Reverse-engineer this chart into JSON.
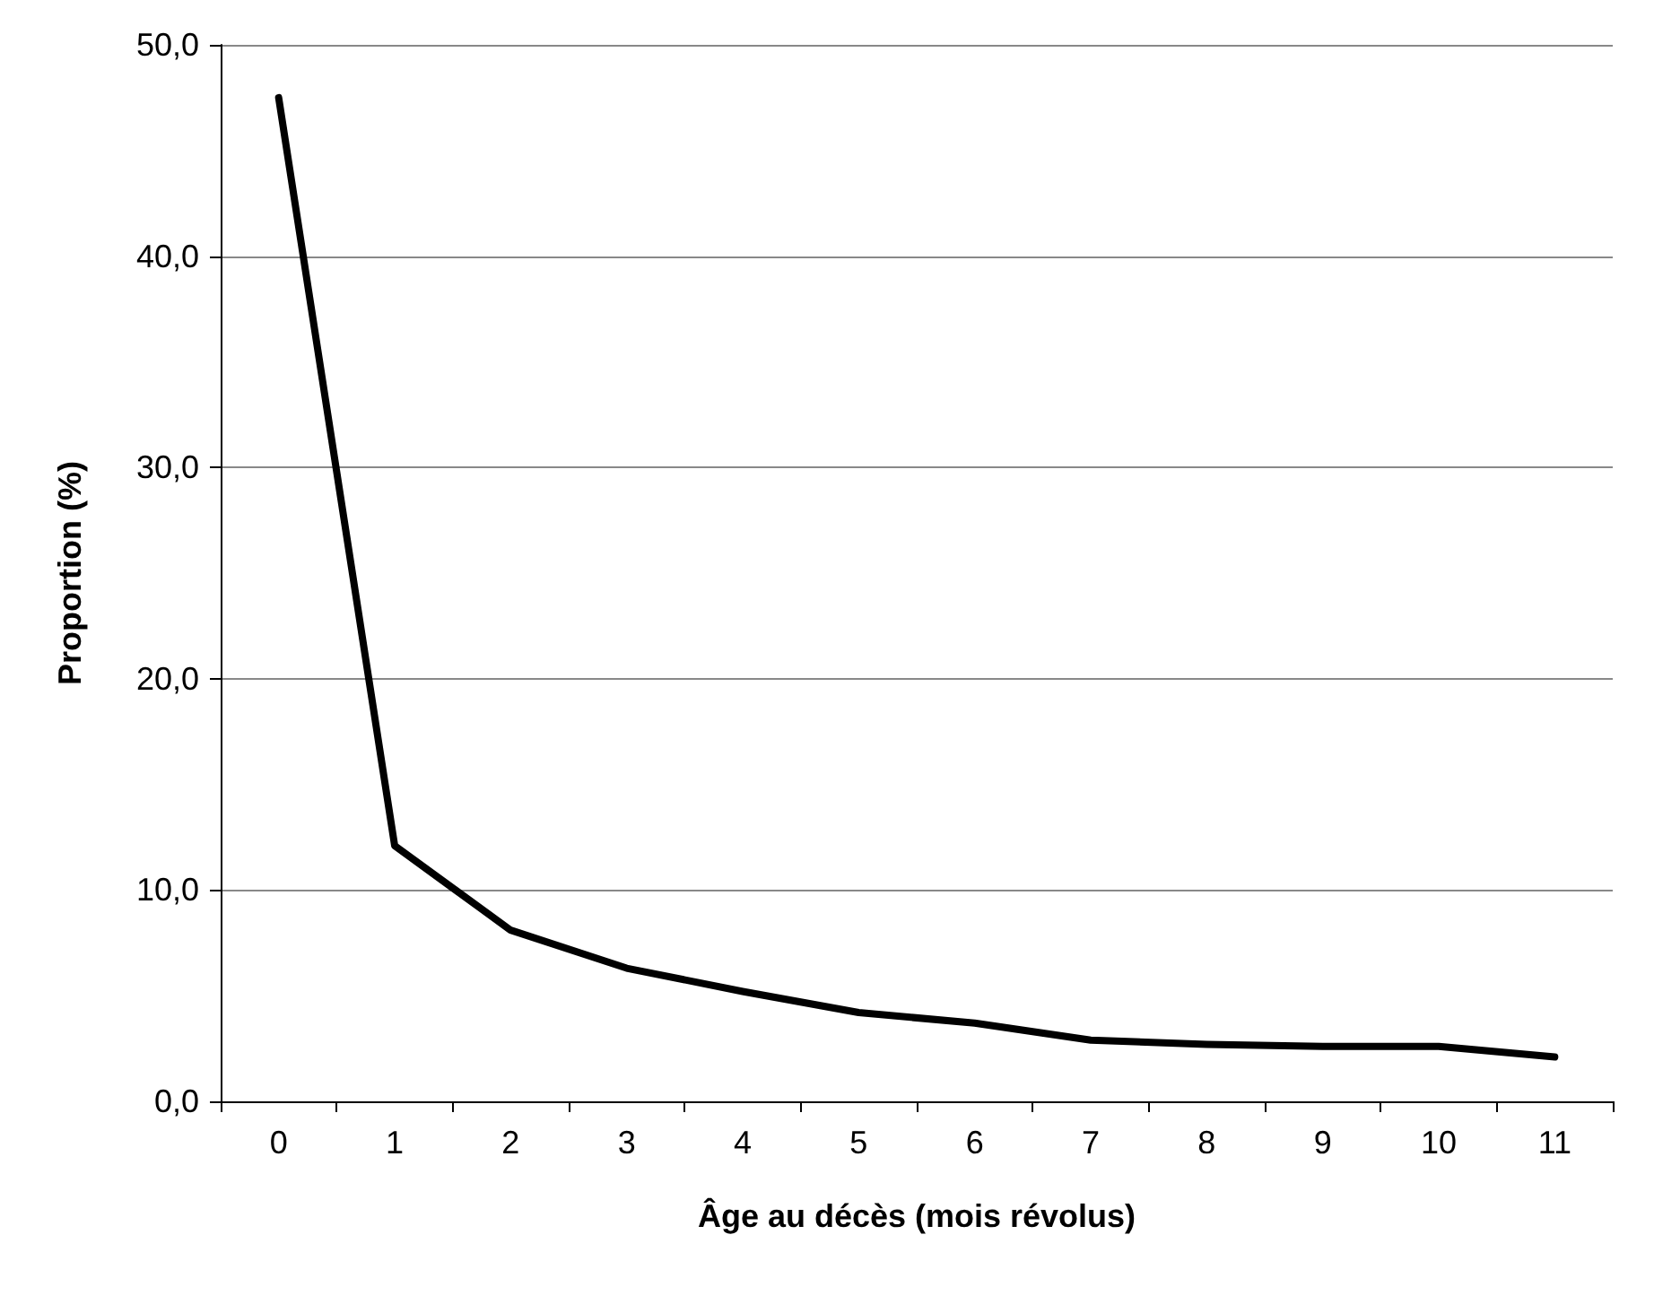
{
  "chart_data": {
    "type": "line",
    "xlabel": "Âge au décès (mois révolus)",
    "ylabel": "Proportion (%)",
    "categories": [
      "0",
      "1",
      "2",
      "3",
      "4",
      "5",
      "6",
      "7",
      "8",
      "9",
      "10",
      "11"
    ],
    "series": [
      {
        "color": "#000000",
        "values": [
          47.5,
          12.1,
          8.1,
          6.3,
          5.2,
          4.2,
          3.7,
          2.9,
          2.7,
          2.6,
          2.6,
          2.1
        ]
      }
    ],
    "ylim": [
      0,
      50
    ],
    "yticks": [
      {
        "value": 0,
        "label": "0,0"
      },
      {
        "value": 10,
        "label": "10,0"
      },
      {
        "value": 20,
        "label": "20,0"
      },
      {
        "value": 30,
        "label": "30,0"
      },
      {
        "value": 40,
        "label": "40,0"
      },
      {
        "value": 50,
        "label": "50,0"
      }
    ],
    "grid": "y",
    "marker": "none",
    "line_style": "solid"
  }
}
